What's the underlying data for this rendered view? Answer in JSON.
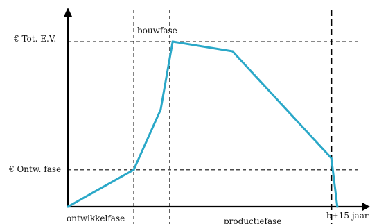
{
  "chart_data": {
    "type": "line",
    "title": "",
    "xlabel": "",
    "ylabel": "",
    "y_tick_labels": {
      "total": "€ Tot. E.V.",
      "development": "€ Ontw. fase"
    },
    "phase_labels": {
      "development": "ontwikkelfase",
      "construction": "bouwfase",
      "production": "productiefase",
      "end": "b+15 jaar"
    },
    "line_color": "#2AA8C8",
    "grid": false,
    "x_domain": [
      0,
      100
    ],
    "y_domain": [
      0,
      100
    ],
    "phase_boundaries": [
      22,
      34,
      88
    ],
    "y_reference_levels": [
      19,
      85
    ],
    "series": [
      {
        "name": "",
        "points": [
          {
            "x": 0,
            "y": 0
          },
          {
            "x": 22,
            "y": 19
          },
          {
            "x": 31,
            "y": 50
          },
          {
            "x": 35,
            "y": 85
          },
          {
            "x": 55,
            "y": 80
          },
          {
            "x": 88,
            "y": 25
          },
          {
            "x": 90,
            "y": 0
          }
        ]
      }
    ]
  }
}
